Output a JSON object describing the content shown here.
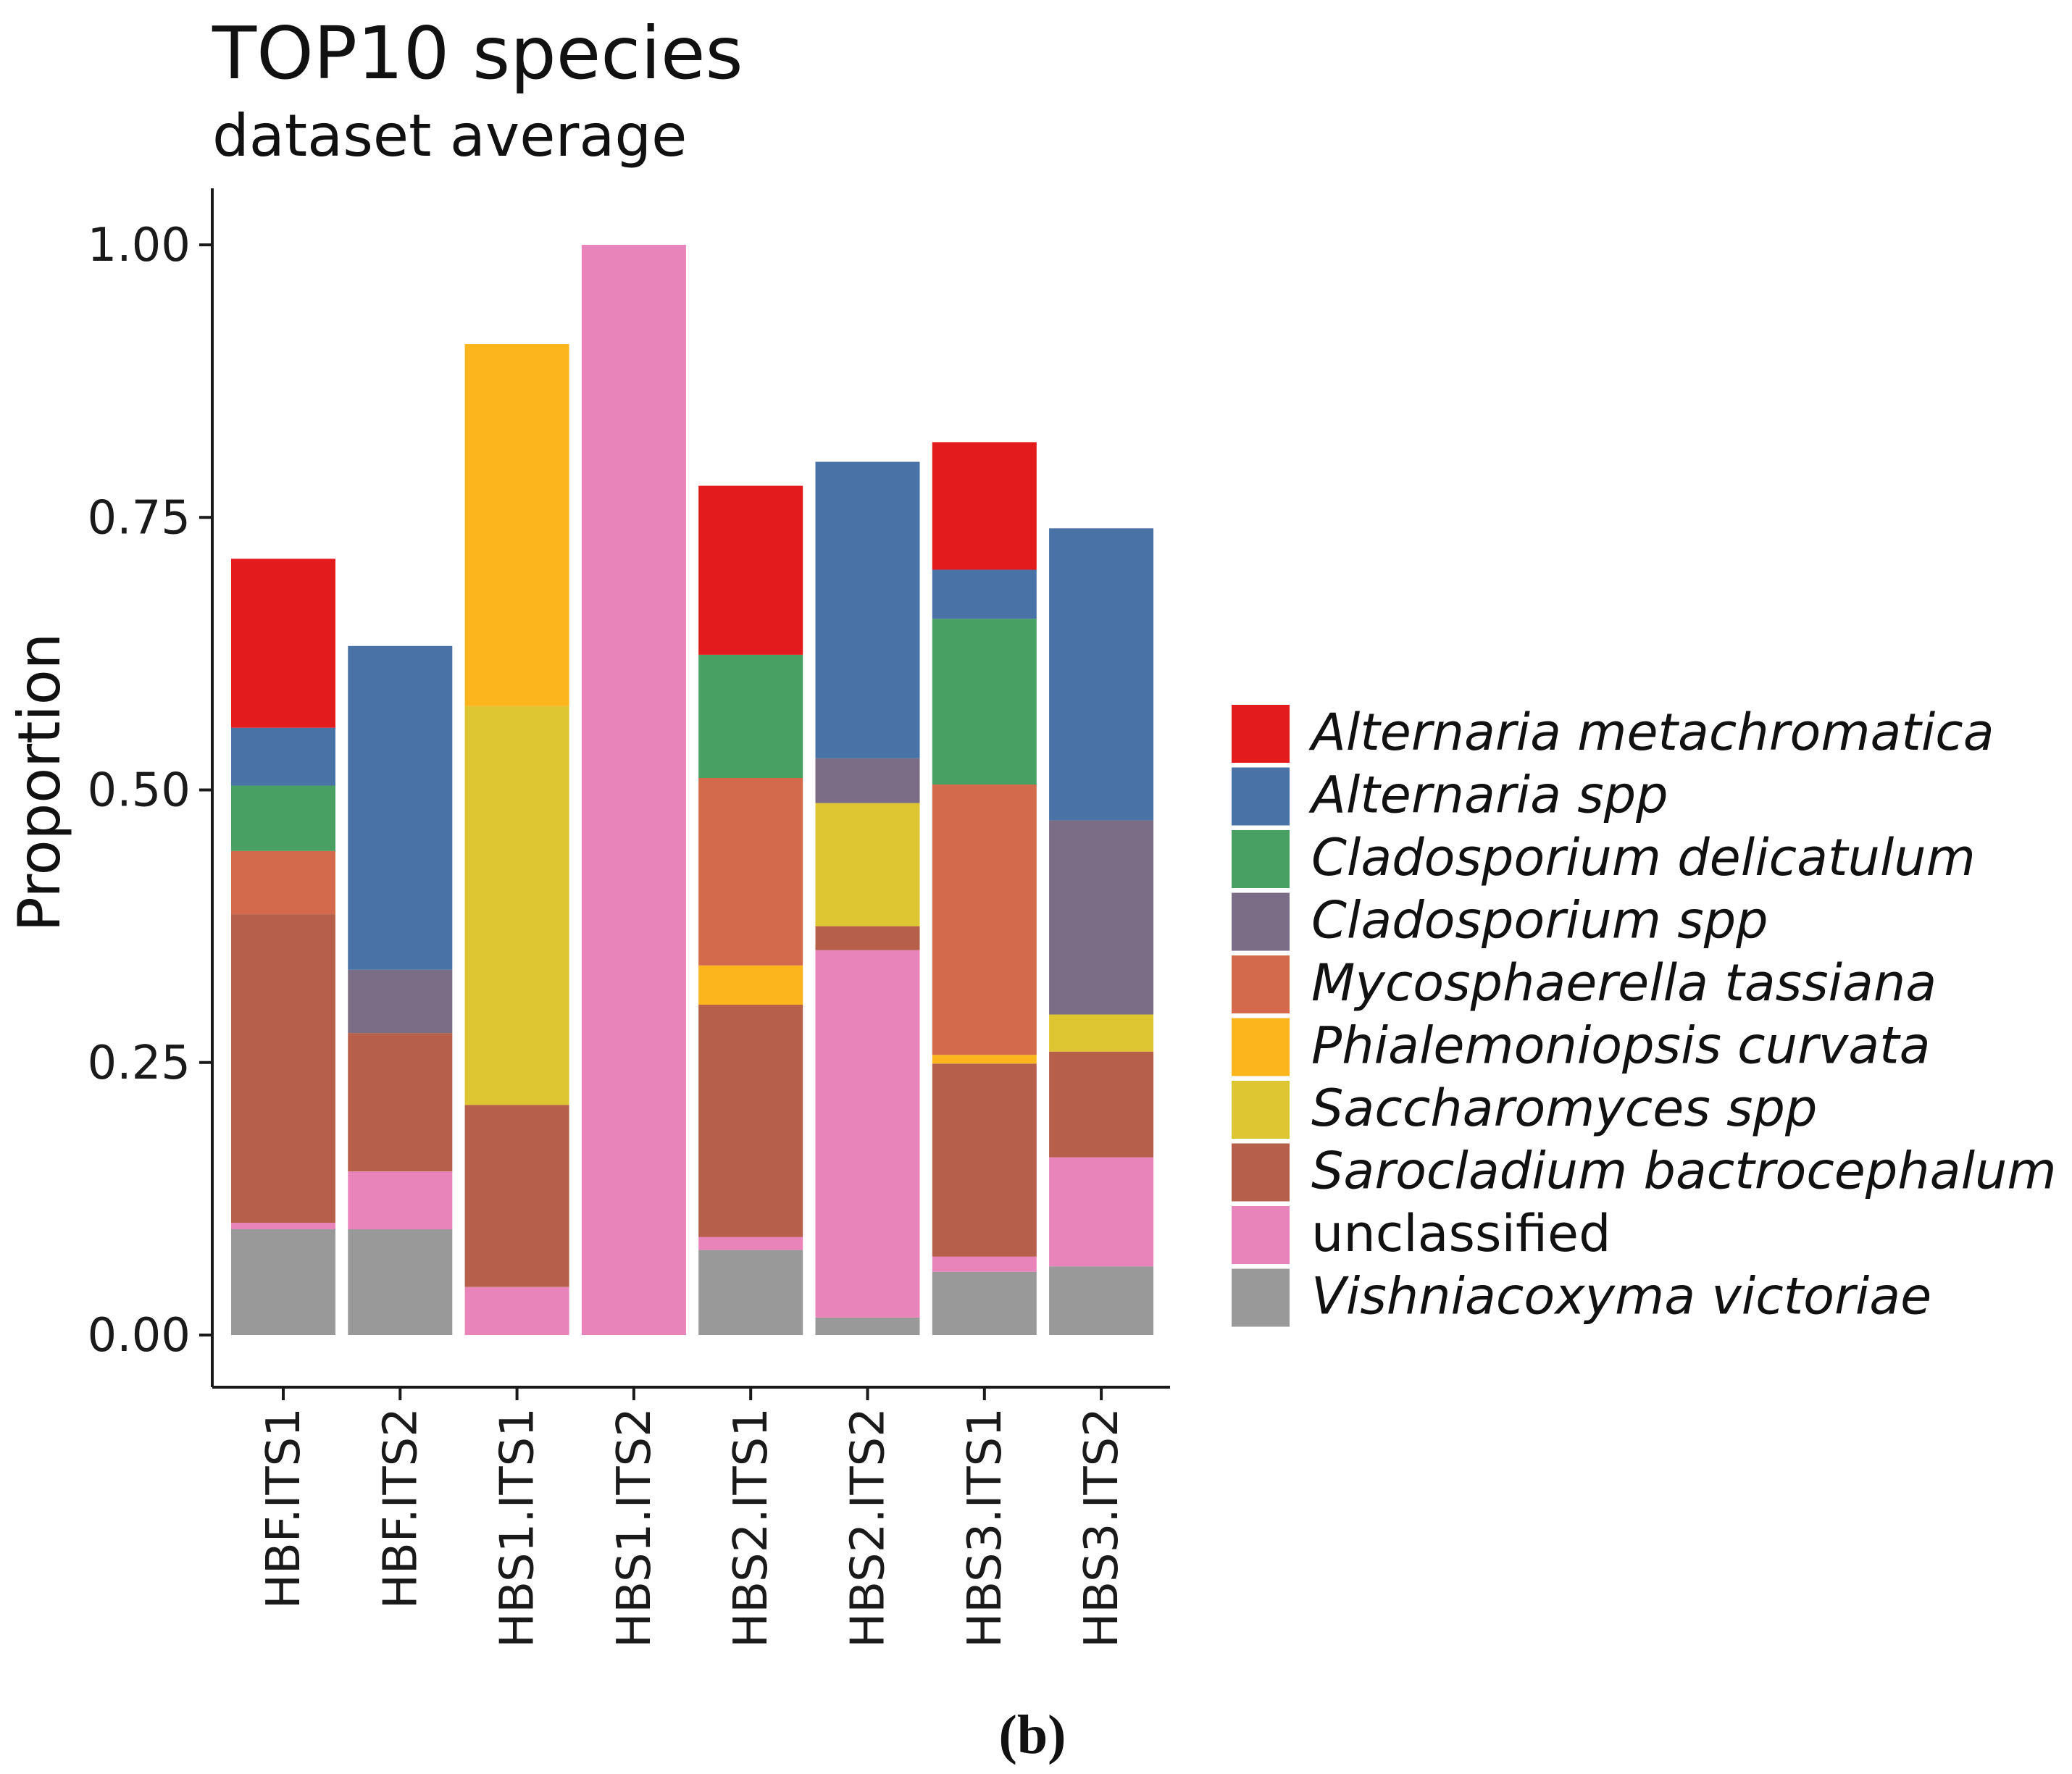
{
  "chart_data": {
    "type": "bar",
    "stacked": true,
    "title": "TOP10 species",
    "subtitle": "dataset average",
    "xlabel": "",
    "ylabel": "Proportion",
    "ylim": [
      0,
      1.05
    ],
    "yticks": [
      "0.00",
      "0.25",
      "0.50",
      "0.75",
      "1.00"
    ],
    "ytick_values": [
      0,
      0.25,
      0.5,
      0.75,
      1.0
    ],
    "grid": false,
    "legend_position": "right",
    "categories": [
      "HBF.ITS1",
      "HBF.ITS2",
      "HBS1.ITS1",
      "HBS1.ITS2",
      "HBS2.ITS1",
      "HBS2.ITS2",
      "HBS3.ITS1",
      "HBS3.ITS2"
    ],
    "series": [
      {
        "name": "Vishniacoxyma victoriae",
        "italic": true,
        "color": "#999999",
        "values": [
          0.097,
          0.097,
          0,
          0,
          0.078,
          0.016,
          0.058,
          0.063
        ]
      },
      {
        "name": "unclassified",
        "italic": false,
        "color": "#E984BB",
        "values": [
          0.006,
          0.053,
          0.044,
          1.0,
          0.012,
          0.337,
          0.014,
          0.1
        ]
      },
      {
        "name": "Sarocladium bactrocephalum",
        "italic": true,
        "color": "#B65F4A",
        "values": [
          0.283,
          0.127,
          0.167,
          0,
          0.213,
          0.022,
          0.177,
          0.097
        ]
      },
      {
        "name": "Saccharomyces spp",
        "italic": true,
        "color": "#DEC532",
        "values": [
          0,
          0,
          0.366,
          0,
          0,
          0.113,
          0,
          0.034
        ]
      },
      {
        "name": "Phialemoniopsis curvata",
        "italic": true,
        "color": "#FDB51D",
        "values": [
          0,
          0,
          0.332,
          0,
          0.036,
          0,
          0.008,
          0
        ]
      },
      {
        "name": "Mycosphaerella tassiana",
        "italic": true,
        "color": "#D26A4B",
        "values": [
          0.058,
          0,
          0,
          0,
          0.172,
          0,
          0.248,
          0
        ]
      },
      {
        "name": "Cladosporium spp",
        "italic": true,
        "color": "#7B6D85",
        "values": [
          0,
          0.058,
          0,
          0,
          0,
          0.041,
          0,
          0.178
        ]
      },
      {
        "name": "Cladosporium delicatulum",
        "italic": true,
        "color": "#48A063",
        "values": [
          0.06,
          0,
          0,
          0,
          0.113,
          0,
          0.152,
          0
        ]
      },
      {
        "name": "Alternaria spp",
        "italic": true,
        "color": "#4973A6",
        "values": [
          0.053,
          0.297,
          0,
          0,
          0,
          0.272,
          0.045,
          0.268
        ]
      },
      {
        "name": "Alternaria metachromatica",
        "italic": true,
        "color": "#E31B1C",
        "values": [
          0.155,
          0,
          0,
          0,
          0.155,
          0,
          0.117,
          0
        ]
      }
    ],
    "legend_order": [
      "Alternaria metachromatica",
      "Alternaria spp",
      "Cladosporium delicatulum",
      "Cladosporium spp",
      "Mycosphaerella tassiana",
      "Phialemoniopsis curvata",
      "Saccharomyces spp",
      "Sarocladium bactrocephalum",
      "unclassified",
      "Vishniacoxyma victoriae"
    ]
  },
  "caption": "(b)"
}
